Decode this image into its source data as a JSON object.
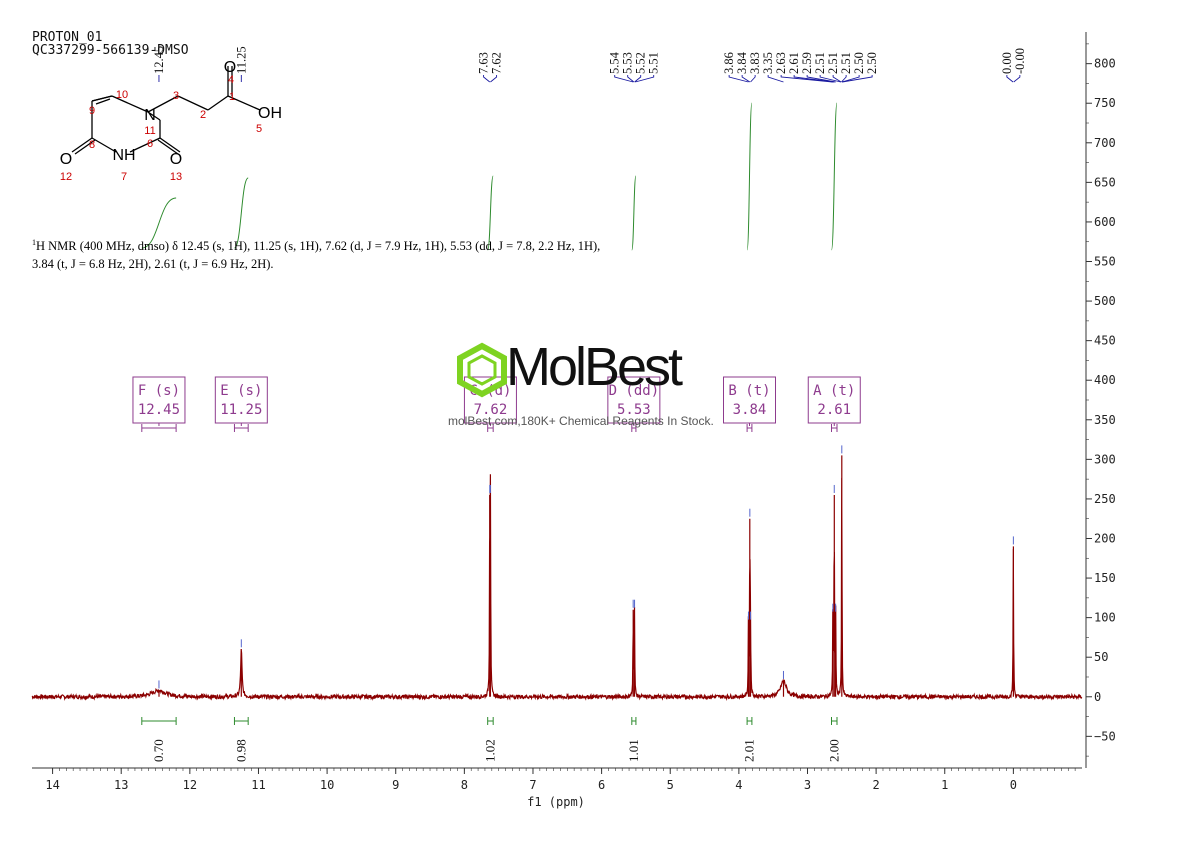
{
  "header": {
    "line1": "PROTON_01",
    "line2": "QC337299-566139-DMSO"
  },
  "nmr_text": {
    "sup": "1",
    "body": "H NMR (400 MHz, dmso) δ 12.45 (s, 1H), 11.25 (s, 1H), 7.62 (d, J = 7.9 Hz, 1H), 5.53 (dd, J = 7.8, 2.2 Hz, 1H), 3.84 (t, J = 6.8 Hz, 2H), 2.61 (t, J = 6.9 Hz, 2H)."
  },
  "watermark": {
    "brand": "MolBest",
    "tagline": "molBest.com,180K+ Chemical Reagents In Stock."
  },
  "structure": {
    "atoms": [
      {
        "label": "O",
        "num": "4"
      },
      {
        "label": "OH",
        "num": "5"
      },
      {
        "label": "N",
        "num": "11"
      },
      {
        "label": "NH",
        "num": "7"
      },
      {
        "label": "O",
        "num": "12"
      },
      {
        "label": "O",
        "num": "13"
      }
    ],
    "carbon_numbers": [
      "1",
      "2",
      "3",
      "6",
      "8",
      "9",
      "10"
    ]
  },
  "colors": {
    "spectrum": "#8b0000",
    "integral": "#2e8b2e",
    "multiplet_box": "#8e3b8e",
    "peak_label_line": "#1a1aa0",
    "axis": "#333333",
    "atom_number": "#cc0000"
  },
  "chart_data": {
    "type": "line",
    "xlabel": "f1 (ppm)",
    "xlim": [
      14.3,
      -1.0
    ],
    "ylim": [
      -90,
      840
    ],
    "x_ticks": [
      14,
      13,
      12,
      11,
      10,
      9,
      8,
      7,
      6,
      5,
      4,
      3,
      2,
      1,
      0
    ],
    "y_ticks": [
      -50,
      0,
      50,
      100,
      150,
      200,
      250,
      300,
      350,
      400,
      450,
      500,
      550,
      600,
      650,
      700,
      750,
      800
    ],
    "peaks": [
      {
        "ppm": 12.45,
        "height": 8,
        "width": 0.12
      },
      {
        "ppm": 11.25,
        "height": 60,
        "width": 0.012
      },
      {
        "ppm": 7.63,
        "height": 255,
        "width": 0.004
      },
      {
        "ppm": 7.62,
        "height": 255,
        "width": 0.004
      },
      {
        "ppm": 5.54,
        "height": 110,
        "width": 0.004
      },
      {
        "ppm": 5.52,
        "height": 110,
        "width": 0.004
      },
      {
        "ppm": 3.86,
        "height": 95,
        "width": 0.004
      },
      {
        "ppm": 3.84,
        "height": 225,
        "width": 0.004
      },
      {
        "ppm": 3.83,
        "height": 95,
        "width": 0.004
      },
      {
        "ppm": 3.35,
        "height": 20,
        "width": 0.05
      },
      {
        "ppm": 2.63,
        "height": 105,
        "width": 0.004
      },
      {
        "ppm": 2.61,
        "height": 255,
        "width": 0.004
      },
      {
        "ppm": 2.59,
        "height": 105,
        "width": 0.004
      },
      {
        "ppm": 2.5,
        "height": 305,
        "width": 0.004
      },
      {
        "ppm": 0.0,
        "height": 190,
        "width": 0.004
      }
    ],
    "peak_labels": [
      {
        "text": "12.45",
        "ppm": 12.45
      },
      {
        "text": "11.25",
        "ppm": 11.25
      },
      {
        "text": "7.63",
        "ppm": 7.63
      },
      {
        "text": "7.62",
        "ppm": 7.62
      },
      {
        "text": "5.54",
        "ppm": 5.54
      },
      {
        "text": "5.53",
        "ppm": 5.53
      },
      {
        "text": "5.52",
        "ppm": 5.52
      },
      {
        "text": "5.51",
        "ppm": 5.51
      },
      {
        "text": "3.86",
        "ppm": 3.86
      },
      {
        "text": "3.84",
        "ppm": 3.84
      },
      {
        "text": "3.83",
        "ppm": 3.83
      },
      {
        "text": "3.35",
        "ppm": 3.35
      },
      {
        "text": "2.63",
        "ppm": 2.63
      },
      {
        "text": "2.61",
        "ppm": 2.61
      },
      {
        "text": "2.59",
        "ppm": 2.59
      },
      {
        "text": "2.51",
        "ppm": 2.515
      },
      {
        "text": "2.51",
        "ppm": 2.51
      },
      {
        "text": "2.51",
        "ppm": 2.505
      },
      {
        "text": "2.50",
        "ppm": 2.5
      },
      {
        "text": "2.50",
        "ppm": 2.495
      },
      {
        "text": "0.00",
        "ppm": 0.005
      },
      {
        "text": "-0.00",
        "ppm": -0.005
      }
    ],
    "multiplets": [
      {
        "letter": "F",
        "type": "s",
        "shift": "12.45",
        "from": 12.7,
        "to": 12.2
      },
      {
        "letter": "E",
        "type": "s",
        "shift": "11.25",
        "from": 11.35,
        "to": 11.15
      },
      {
        "letter": "C",
        "type": "d",
        "shift": "7.62",
        "from": 7.66,
        "to": 7.58
      },
      {
        "letter": "D",
        "type": "dd",
        "shift": "5.53",
        "from": 5.56,
        "to": 5.5
      },
      {
        "letter": "B",
        "type": "t",
        "shift": "3.84",
        "from": 3.88,
        "to": 3.81
      },
      {
        "letter": "A",
        "type": "t",
        "shift": "2.61",
        "from": 2.65,
        "to": 2.57
      }
    ],
    "integrals": [
      {
        "value": "0.70",
        "from": 12.7,
        "to": 12.2
      },
      {
        "value": "0.98",
        "from": 11.35,
        "to": 11.15
      },
      {
        "value": "1.02",
        "from": 7.66,
        "to": 7.58
      },
      {
        "value": "1.01",
        "from": 5.56,
        "to": 5.5
      },
      {
        "value": "2.01",
        "from": 3.88,
        "to": 3.81
      },
      {
        "value": "2.00",
        "from": 2.65,
        "to": 2.57
      }
    ]
  }
}
